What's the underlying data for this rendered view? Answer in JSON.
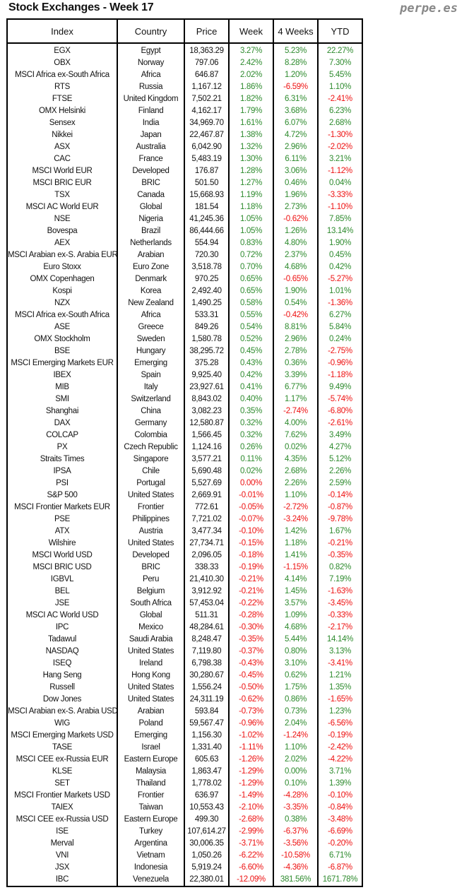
{
  "title": "Stock Exchanges - Week 17",
  "brand": "perpe.es",
  "colors": {
    "positive": "#2e8b2e",
    "negative": "#ee1111"
  },
  "headers": [
    "Index",
    "Country",
    "Price",
    "Week",
    "4 Weeks",
    "YTD"
  ],
  "red_zero_cells": [
    {
      "row": 36,
      "col": 3
    }
  ],
  "rows": [
    [
      "EGX",
      "Egypt",
      "18,363.29",
      "3.27%",
      "5.23%",
      "22.27%"
    ],
    [
      "OBX",
      "Norway",
      "797.06",
      "2.42%",
      "8.28%",
      "7.30%"
    ],
    [
      "MSCI Africa ex-South Africa",
      "Africa",
      "646.87",
      "2.02%",
      "1.20%",
      "5.45%"
    ],
    [
      "RTS",
      "Russia",
      "1,167.12",
      "1.86%",
      "-6.59%",
      "1.10%"
    ],
    [
      "FTSE",
      "United Kingdom",
      "7,502.21",
      "1.82%",
      "6.31%",
      "-2.41%"
    ],
    [
      "OMX Helsinki",
      "Finland",
      "4,162.17",
      "1.79%",
      "3.68%",
      "6.23%"
    ],
    [
      "Sensex",
      "India",
      "34,969.70",
      "1.61%",
      "6.07%",
      "2.68%"
    ],
    [
      "Nikkei",
      "Japan",
      "22,467.87",
      "1.38%",
      "4.72%",
      "-1.30%"
    ],
    [
      "ASX",
      "Australia",
      "6,042.90",
      "1.32%",
      "2.96%",
      "-2.02%"
    ],
    [
      "CAC",
      "France",
      "5,483.19",
      "1.30%",
      "6.11%",
      "3.21%"
    ],
    [
      "MSCI World EUR",
      "Developed",
      "176.87",
      "1.28%",
      "3.06%",
      "-1.12%"
    ],
    [
      "MSCI BRIC EUR",
      "BRIC",
      "501.50",
      "1.27%",
      "0.46%",
      "0.04%"
    ],
    [
      "TSX",
      "Canada",
      "15,668.93",
      "1.19%",
      "1.96%",
      "-3.33%"
    ],
    [
      "MSCI AC World EUR",
      "Global",
      "181.54",
      "1.18%",
      "2.73%",
      "-1.10%"
    ],
    [
      "NSE",
      "Nigeria",
      "41,245.36",
      "1.05%",
      "-0.62%",
      "7.85%"
    ],
    [
      "Bovespa",
      "Brazil",
      "86,444.66",
      "1.05%",
      "1.26%",
      "13.14%"
    ],
    [
      "AEX",
      "Netherlands",
      "554.94",
      "0.83%",
      "4.80%",
      "1.90%"
    ],
    [
      "MSCI Arabian ex-S. Arabia EUR",
      "Arabian",
      "720.30",
      "0.72%",
      "2.37%",
      "0.45%"
    ],
    [
      "Euro Stoxx",
      "Euro Zone",
      "3,518.78",
      "0.70%",
      "4.68%",
      "0.42%"
    ],
    [
      "OMX Copenhagen",
      "Denmark",
      "970.25",
      "0.65%",
      "-0.65%",
      "-5.27%"
    ],
    [
      "Kospi",
      "Korea",
      "2,492.40",
      "0.65%",
      "1.90%",
      "1.01%"
    ],
    [
      "NZX",
      "New Zealand",
      "1,490.25",
      "0.58%",
      "0.54%",
      "-1.36%"
    ],
    [
      "MSCI Africa ex-South Africa",
      "Africa",
      "533.31",
      "0.55%",
      "-0.42%",
      "6.27%"
    ],
    [
      "ASE",
      "Greece",
      "849.26",
      "0.54%",
      "8.81%",
      "5.84%"
    ],
    [
      "OMX Stockholm",
      "Sweden",
      "1,580.78",
      "0.52%",
      "2.96%",
      "0.24%"
    ],
    [
      "BSE",
      "Hungary",
      "38,295.72",
      "0.45%",
      "2.78%",
      "-2.75%"
    ],
    [
      "MSCI Emerging Markets EUR",
      "Emerging",
      "375.28",
      "0.43%",
      "0.36%",
      "-0.96%"
    ],
    [
      "IBEX",
      "Spain",
      "9,925.40",
      "0.42%",
      "3.39%",
      "-1.18%"
    ],
    [
      "MIB",
      "Italy",
      "23,927.61",
      "0.41%",
      "6.77%",
      "9.49%"
    ],
    [
      "SMI",
      "Switzerland",
      "8,843.02",
      "0.40%",
      "1.17%",
      "-5.74%"
    ],
    [
      "Shanghai",
      "China",
      "3,082.23",
      "0.35%",
      "-2.74%",
      "-6.80%"
    ],
    [
      "DAX",
      "Germany",
      "12,580.87",
      "0.32%",
      "4.00%",
      "-2.61%"
    ],
    [
      "COLCAP",
      "Colombia",
      "1,566.45",
      "0.32%",
      "7.62%",
      "3.49%"
    ],
    [
      "PX",
      "Czech Republic",
      "1,124.16",
      "0.26%",
      "0.02%",
      "4.27%"
    ],
    [
      "Straits Times",
      "Singapore",
      "3,577.21",
      "0.11%",
      "4.35%",
      "5.12%"
    ],
    [
      "IPSA",
      "Chile",
      "5,690.48",
      "0.02%",
      "2.68%",
      "2.26%"
    ],
    [
      "PSI",
      "Portugal",
      "5,527.69",
      "0.00%",
      "2.26%",
      "2.59%"
    ],
    [
      "S&P 500",
      "United States",
      "2,669.91",
      "-0.01%",
      "1.10%",
      "-0.14%"
    ],
    [
      "MSCI Frontier Markets EUR",
      "Frontier",
      "772.61",
      "-0.05%",
      "-2.72%",
      "-0.87%"
    ],
    [
      "PSE",
      "Philippines",
      "7,721.02",
      "-0.07%",
      "-3.24%",
      "-9.78%"
    ],
    [
      "ATX",
      "Austria",
      "3,477.34",
      "-0.10%",
      "1.42%",
      "1.67%"
    ],
    [
      "Wilshire",
      "United States",
      "27,734.71",
      "-0.15%",
      "1.18%",
      "-0.21%"
    ],
    [
      "MSCI World USD",
      "Developed",
      "2,096.05",
      "-0.18%",
      "1.41%",
      "-0.35%"
    ],
    [
      "MSCI BRIC USD",
      "BRIC",
      "338.33",
      "-0.19%",
      "-1.15%",
      "0.82%"
    ],
    [
      "IGBVL",
      "Peru",
      "21,410.30",
      "-0.21%",
      "4.14%",
      "7.19%"
    ],
    [
      "BEL",
      "Belgium",
      "3,912.92",
      "-0.21%",
      "1.45%",
      "-1.63%"
    ],
    [
      "JSE",
      "South Africa",
      "57,453.04",
      "-0.22%",
      "3.57%",
      "-3.45%"
    ],
    [
      "MSCI AC World USD",
      "Global",
      "511.31",
      "-0.28%",
      "1.09%",
      "-0.33%"
    ],
    [
      "IPC",
      "Mexico",
      "48,284.61",
      "-0.30%",
      "4.68%",
      "-2.17%"
    ],
    [
      "Tadawul",
      "Saudi Arabia",
      "8,248.47",
      "-0.35%",
      "5.44%",
      "14.14%"
    ],
    [
      "NASDAQ",
      "United States",
      "7,119.80",
      "-0.37%",
      "0.80%",
      "3.13%"
    ],
    [
      "ISEQ",
      "Ireland",
      "6,798.38",
      "-0.43%",
      "3.10%",
      "-3.41%"
    ],
    [
      "Hang Seng",
      "Hong Kong",
      "30,280.67",
      "-0.45%",
      "0.62%",
      "1.21%"
    ],
    [
      "Russell",
      "United States",
      "1,556.24",
      "-0.50%",
      "1.75%",
      "1.35%"
    ],
    [
      "Dow Jones",
      "United States",
      "24,311.19",
      "-0.62%",
      "0.86%",
      "-1.65%"
    ],
    [
      "MSCI Arabian ex-S. Arabia USD",
      "Arabian",
      "593.84",
      "-0.73%",
      "0.73%",
      "1.23%"
    ],
    [
      "WIG",
      "Poland",
      "59,567.47",
      "-0.96%",
      "2.04%",
      "-6.56%"
    ],
    [
      "MSCI Emerging Markets USD",
      "Emerging",
      "1,156.30",
      "-1.02%",
      "-1.24%",
      "-0.19%"
    ],
    [
      "TASE",
      "Israel",
      "1,331.40",
      "-1.11%",
      "1.10%",
      "-2.42%"
    ],
    [
      "MSCI CEE ex-Russia EUR",
      "Eastern Europe",
      "605.63",
      "-1.26%",
      "2.02%",
      "-4.22%"
    ],
    [
      "KLSE",
      "Malaysia",
      "1,863.47",
      "-1.29%",
      "0.00%",
      "3.71%"
    ],
    [
      "SET",
      "Thailand",
      "1,778.02",
      "-1.29%",
      "0.10%",
      "1.39%"
    ],
    [
      "MSCI Frontier Markets USD",
      "Frontier",
      "636.97",
      "-1.49%",
      "-4.28%",
      "-0.10%"
    ],
    [
      "TAIEX",
      "Taiwan",
      "10,553.43",
      "-2.10%",
      "-3.35%",
      "-0.84%"
    ],
    [
      "MSCI CEE ex-Russia USD",
      "Eastern Europe",
      "499.30",
      "-2.68%",
      "0.38%",
      "-3.48%"
    ],
    [
      "ISE",
      "Turkey",
      "107,614.27",
      "-2.99%",
      "-6.37%",
      "-6.69%"
    ],
    [
      "Merval",
      "Argentina",
      "30,006.35",
      "-3.71%",
      "-3.56%",
      "-0.20%"
    ],
    [
      "VNI",
      "Vietnam",
      "1,050.26",
      "-6.22%",
      "-10.58%",
      "6.71%"
    ],
    [
      "JSX",
      "Indonesia",
      "5,919.24",
      "-6.60%",
      "-4.36%",
      "-6.87%"
    ],
    [
      "IBC",
      "Venezuela",
      "22,380.01",
      "-12.09%",
      "381.56%",
      "1671.78%"
    ]
  ]
}
